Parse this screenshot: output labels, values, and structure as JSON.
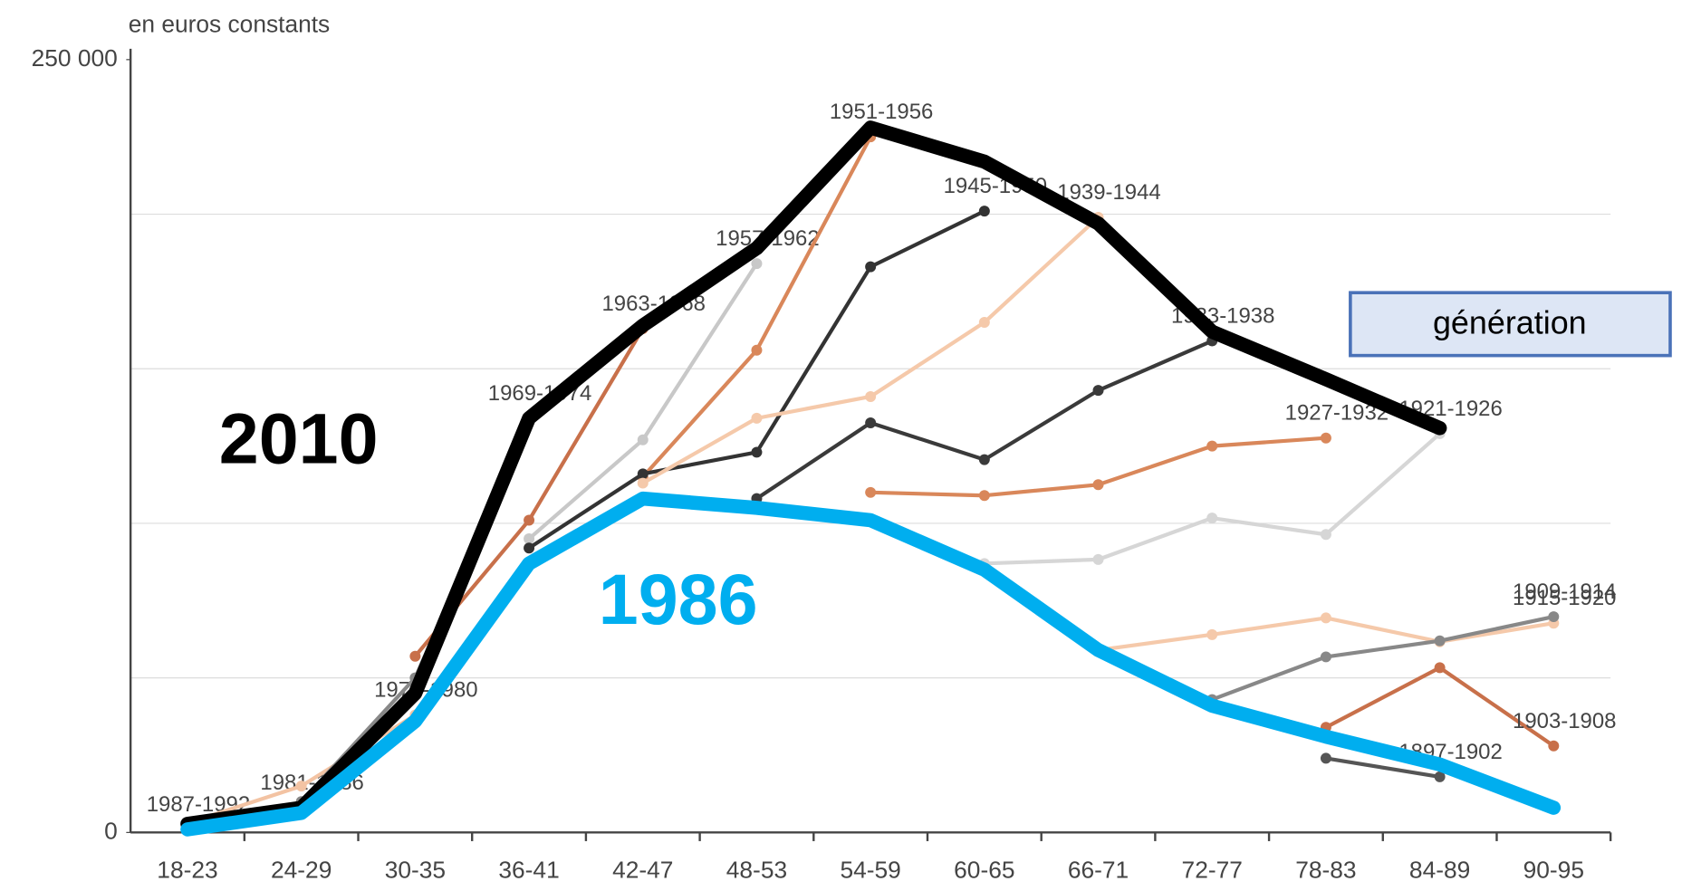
{
  "chart_data": {
    "type": "line",
    "axis_note": "en euros constants",
    "legend_title": "génération",
    "categories": [
      "18-23",
      "24-29",
      "30-35",
      "36-41",
      "42-47",
      "48-53",
      "54-59",
      "60-65",
      "66-71",
      "72-77",
      "78-83",
      "84-89",
      "90-95"
    ],
    "ylim": [
      0,
      250000
    ],
    "yticks": [
      0,
      {
        "value": 250000,
        "label": "250 000"
      }
    ],
    "gridlines": [
      50000,
      100000,
      150000,
      200000
    ],
    "grid": true,
    "series": [
      {
        "name": "1987-1992",
        "color": "#aaaaaa",
        "values": [
          1000,
          null,
          null,
          null,
          null,
          null,
          null,
          null,
          null,
          null,
          null,
          null,
          null
        ]
      },
      {
        "name": "1981-1986",
        "color": "#555555",
        "values": [
          2000,
          8000,
          null,
          null,
          null,
          null,
          null,
          null,
          null,
          null,
          null,
          null,
          null
        ]
      },
      {
        "name": "1975-1980",
        "color": "#f3c3a3",
        "values": [
          3000,
          15000,
          38000,
          null,
          null,
          null,
          null,
          null,
          null,
          null,
          null,
          null,
          null
        ]
      },
      {
        "name": "1969-1974",
        "color": "#888888",
        "values": [
          null,
          10000,
          50000,
          134000,
          null,
          null,
          null,
          null,
          null,
          null,
          null,
          null,
          null
        ]
      },
      {
        "name": "1963-1968",
        "color": "#c8704a",
        "values": [
          null,
          null,
          57000,
          101000,
          163000,
          null,
          null,
          null,
          null,
          null,
          null,
          null,
          null
        ]
      },
      {
        "name": "1957-1962",
        "color": "#c8c8c8",
        "values": [
          null,
          null,
          null,
          95000,
          127000,
          184000,
          null,
          null,
          null,
          null,
          null,
          null,
          null
        ]
      },
      {
        "name": "1951-1956",
        "color": "#d9875a",
        "values": [
          null,
          null,
          null,
          null,
          115000,
          156000,
          225000,
          null,
          null,
          null,
          null,
          null,
          null
        ]
      },
      {
        "name": "1945-1950",
        "color": "#333333",
        "values": [
          null,
          null,
          null,
          92000,
          116000,
          123000,
          183000,
          201000,
          null,
          null,
          null,
          null,
          null
        ]
      },
      {
        "name": "1939-1944",
        "color": "#f5c9aa",
        "values": [
          null,
          null,
          null,
          null,
          113000,
          134000,
          141000,
          165000,
          199000,
          null,
          null,
          null,
          null
        ]
      },
      {
        "name": "1933-1938",
        "color": "#3a3a3a",
        "values": [
          null,
          null,
          null,
          null,
          null,
          108000,
          132500,
          120600,
          143000,
          159000,
          null,
          null,
          null
        ]
      },
      {
        "name": "1927-1932",
        "color": "#d9875a",
        "values": [
          null,
          null,
          null,
          null,
          null,
          null,
          110000,
          109000,
          112500,
          125000,
          127600,
          null,
          null
        ]
      },
      {
        "name": "1921-1926",
        "color": "#d6d6d6",
        "values": [
          null,
          null,
          null,
          null,
          null,
          null,
          null,
          87000,
          88300,
          101700,
          96400,
          129000,
          null
        ]
      },
      {
        "name": "1915-1920",
        "color": "#f5c9aa",
        "values": [
          null,
          null,
          null,
          null,
          null,
          null,
          null,
          null,
          59000,
          64000,
          69400,
          61700,
          67700
        ]
      },
      {
        "name": "1909-1914",
        "color": "#888888",
        "values": [
          null,
          null,
          null,
          null,
          null,
          null,
          null,
          null,
          null,
          43000,
          56800,
          62000,
          69800
        ]
      },
      {
        "name": "1903-1908",
        "color": "#c8704a",
        "values": [
          null,
          null,
          null,
          null,
          null,
          null,
          null,
          null,
          null,
          null,
          34000,
          53300,
          28000
        ]
      },
      {
        "name": "1897-1902",
        "color": "#555555",
        "values": [
          null,
          null,
          null,
          null,
          null,
          null,
          null,
          null,
          null,
          null,
          24000,
          18000,
          null
        ]
      }
    ],
    "overlays": [
      {
        "name": "2010",
        "color": "#000000",
        "values": [
          2800,
          8000,
          45000,
          134000,
          164000,
          189000,
          228000,
          217000,
          197000,
          162000,
          146600,
          130800,
          null
        ]
      },
      {
        "name": "1986",
        "color": "#00aeef",
        "values": [
          1000,
          6300,
          36000,
          87000,
          108000,
          105000,
          101000,
          85000,
          59000,
          41000,
          31000,
          22000,
          8000
        ]
      }
    ]
  }
}
